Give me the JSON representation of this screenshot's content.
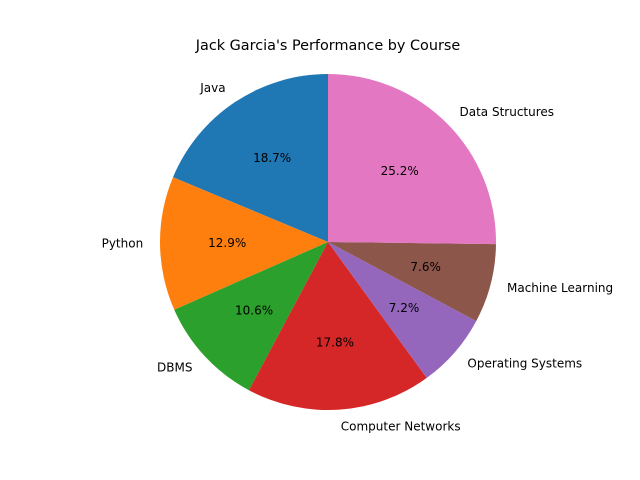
{
  "chart_data": {
    "type": "pie",
    "title": "Jack Garcia's Performance by Course",
    "start_angle_deg": 90,
    "direction": "counterclockwise",
    "slices": [
      {
        "label": "Java",
        "value": 18.7,
        "pct_label": "18.7%",
        "color": "#1f77b4"
      },
      {
        "label": "Python",
        "value": 12.9,
        "pct_label": "12.9%",
        "color": "#ff7f0e"
      },
      {
        "label": "DBMS",
        "value": 10.6,
        "pct_label": "10.6%",
        "color": "#2ca02c"
      },
      {
        "label": "Computer Networks",
        "value": 17.8,
        "pct_label": "17.8%",
        "color": "#d62728"
      },
      {
        "label": "Operating Systems",
        "value": 7.2,
        "pct_label": "7.2%",
        "color": "#9467bd"
      },
      {
        "label": "Machine Learning",
        "value": 7.6,
        "pct_label": "7.6%",
        "color": "#8c564b"
      },
      {
        "label": "Data Structures",
        "value": 25.2,
        "pct_label": "25.2%",
        "color": "#e377c2"
      }
    ]
  }
}
